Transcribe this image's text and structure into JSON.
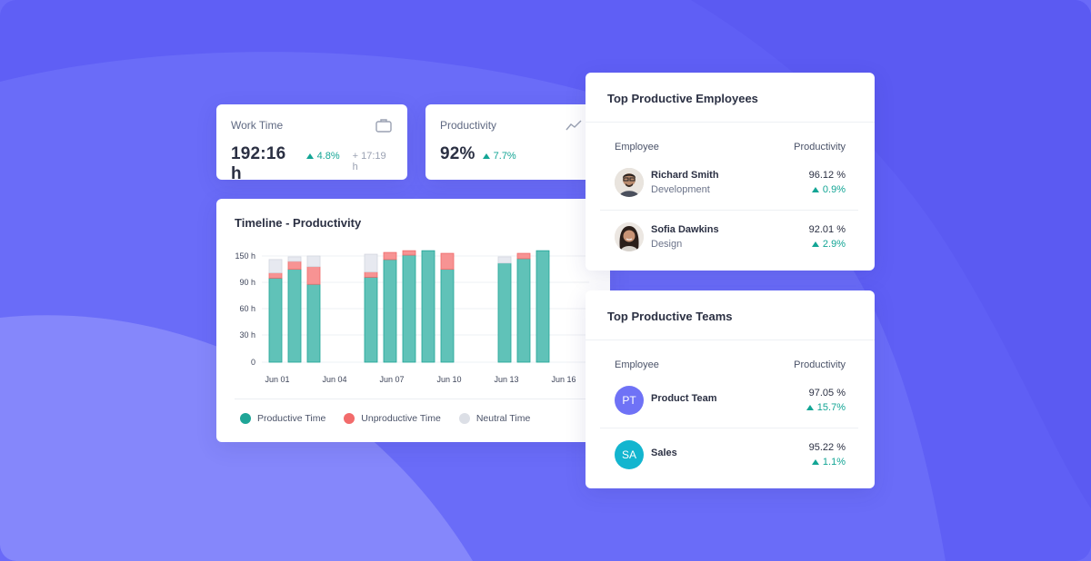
{
  "colors": {
    "background": "#6466f6",
    "productive": "#60c2b8",
    "productive_dark": "#1fa597",
    "unproductive": "#f79393",
    "unproductive_dark": "#ef6b6b",
    "neutral": "#e7e9f0",
    "accent_green": "#13a595",
    "pt_avatar": "#6f72f6",
    "sa_avatar": "#13b5cf"
  },
  "work_time": {
    "title": "Work Time",
    "value": "192:16 h",
    "delta": "4.8%",
    "sub": "+ 17:19 h",
    "icon": "briefcase-icon"
  },
  "productivity": {
    "title": "Productivity",
    "value": "92%",
    "delta": "7.7%",
    "icon": "trend-line-icon"
  },
  "timeline": {
    "title": "Timeline - Productivity",
    "legend": [
      "Productive Time",
      "Unproductive Time",
      "Neutral Time"
    ]
  },
  "chart_data": {
    "type": "bar",
    "stacked": true,
    "x_ticks": [
      "Jun 01",
      "Jun 04",
      "Jun 07",
      "Jun 10",
      "Jun 13",
      "Jun 16"
    ],
    "y_ticks": [
      "150 h",
      "90 h",
      "60 h",
      "30 h",
      "0"
    ],
    "ylim": [
      0,
      120
    ],
    "grid": true,
    "legend_position": "bottom",
    "series": [
      {
        "name": "Productive Time",
        "values": [
          95,
          105,
          88,
          null,
          null,
          96,
          116,
          121,
          126,
          105,
          null,
          null,
          112,
          117,
          126
        ]
      },
      {
        "name": "Unproductive Time",
        "values": [
          6,
          9,
          20,
          null,
          null,
          6,
          8,
          5,
          0,
          18,
          null,
          null,
          0,
          6,
          0
        ]
      },
      {
        "name": "Neutral Time",
        "values": [
          15,
          5,
          12,
          null,
          null,
          20,
          0,
          0,
          0,
          0,
          null,
          null,
          7,
          0,
          0
        ]
      }
    ]
  },
  "top_employees": {
    "title": "Top Productive Employees",
    "col_left": "Employee",
    "col_right": "Productivity",
    "rows": [
      {
        "name": "Richard Smith",
        "dept": "Development",
        "pct": "96.12 %",
        "delta": "0.9%"
      },
      {
        "name": "Sofia Dawkins",
        "dept": "Design",
        "pct": "92.01 %",
        "delta": "2.9%"
      }
    ]
  },
  "top_teams": {
    "title": "Top Productive Teams",
    "col_left": "Employee",
    "col_right": "Productivity",
    "rows": [
      {
        "initials": "PT",
        "name": "Product Team",
        "pct": "97.05 %",
        "delta": "15.7%"
      },
      {
        "initials": "SA",
        "name": "Sales",
        "pct": "95.22 %",
        "delta": "1.1%"
      }
    ]
  }
}
